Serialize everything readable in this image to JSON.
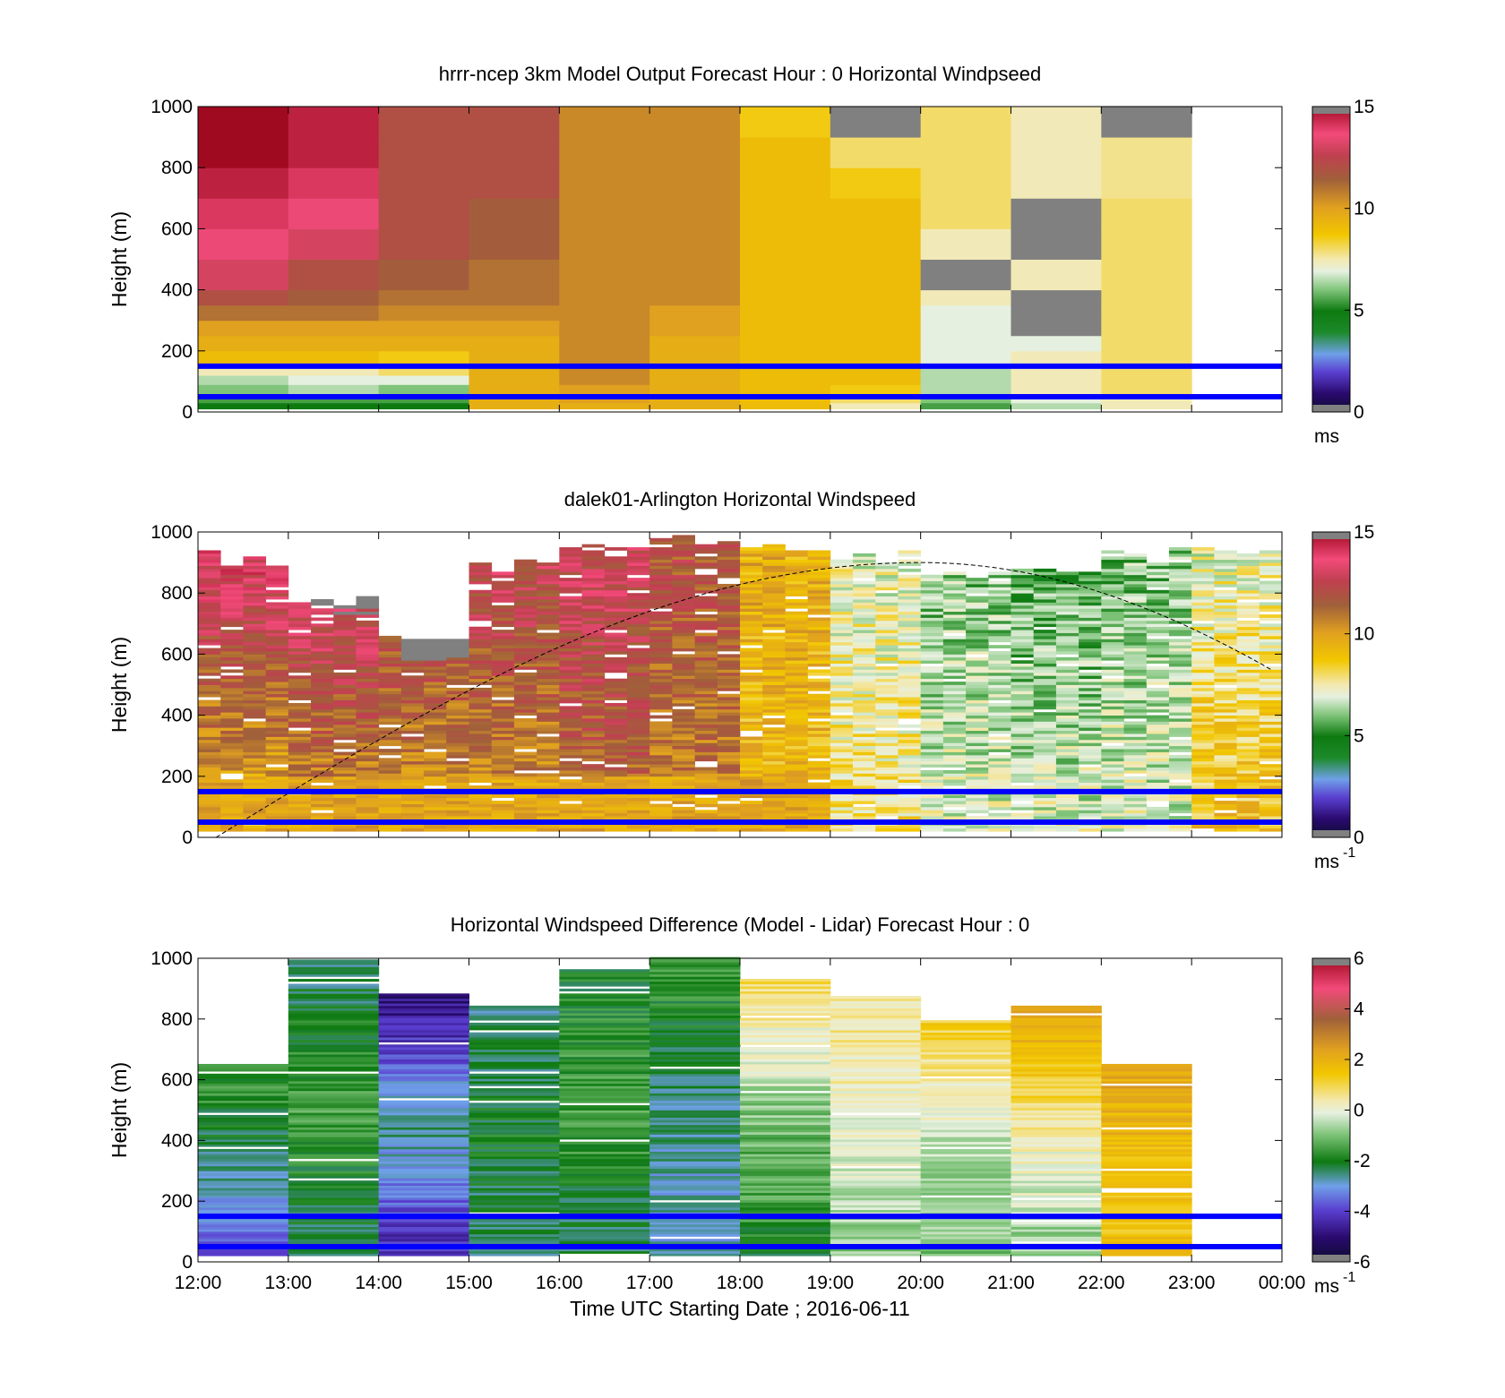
{
  "figure": {
    "xlabel": "Time UTC  Starting Date ; 2016-06-11",
    "x_ticks": [
      "12:00",
      "13:00",
      "14:00",
      "15:00",
      "16:00",
      "17:00",
      "18:00",
      "19:00",
      "20:00",
      "21:00",
      "22:00",
      "23:00",
      "00:00"
    ],
    "y_ticks": [
      "0",
      "200",
      "400",
      "600",
      "800",
      "1000"
    ],
    "ylabel": "Height (m)"
  },
  "colors": {
    "reference_lines": "#0000ff",
    "solar_curve": "#000000",
    "missing": "#808080"
  },
  "chart_data": [
    {
      "type": "heatmap",
      "panel": "model",
      "title": "hrrr-ncep 3km Model Output   Forecast Hour : 0 Horizontal Windpseed",
      "ylabel": "Height (m)",
      "xlim_hours_utc": [
        12,
        24
      ],
      "ylim": [
        0,
        1000
      ],
      "colorbar": {
        "ticks": [
          "0",
          "5",
          "10",
          "15"
        ],
        "range": [
          0,
          15
        ],
        "unit_label": "ms",
        "unit_superscript": ""
      },
      "reference_lines_m": [
        150,
        50
      ],
      "levels_m": [
        30,
        60,
        90,
        120,
        160,
        200,
        250,
        300,
        350,
        400,
        500,
        600,
        700,
        800,
        900,
        1000
      ],
      "columns": [
        {
          "hour": "12:00",
          "speed_ms": [
            5,
            5.5,
            6,
            6.5,
            7.5,
            9,
            9.5,
            10,
            11,
            12,
            13,
            13.5,
            14,
            14.5,
            15,
            15
          ]
        },
        {
          "hour": "13:00",
          "speed_ms": [
            5,
            5.5,
            6.5,
            7,
            7.5,
            9,
            9.5,
            10,
            11,
            11.5,
            12,
            13,
            13.5,
            14,
            14.5,
            14.5
          ]
        },
        {
          "hour": "14:00",
          "speed_ms": [
            5,
            5.5,
            6,
            7,
            8,
            8.5,
            9.5,
            10,
            10.5,
            11,
            11.5,
            12,
            12,
            12,
            12,
            12
          ]
        },
        {
          "hour": "15:00",
          "speed_ms": [
            9.5,
            9.5,
            9.5,
            9.5,
            9.5,
            9.5,
            9.5,
            10,
            10.5,
            11,
            11,
            11.5,
            11.5,
            12,
            12,
            12
          ]
        },
        {
          "hour": "16:00",
          "speed_ms": [
            9.5,
            10,
            10,
            10.5,
            10.5,
            10.5,
            10.5,
            10.5,
            10.5,
            10.5,
            10.5,
            10.5,
            10.5,
            10.5,
            10.5,
            10.5
          ]
        },
        {
          "hour": "17:00",
          "speed_ms": [
            9.5,
            9.5,
            9.5,
            9.5,
            9.5,
            9.5,
            9.5,
            10,
            10,
            10.5,
            10.5,
            10.5,
            10.5,
            10.5,
            10.5,
            10.5
          ]
        },
        {
          "hour": "18:00",
          "speed_ms": [
            9,
            9,
            9,
            9,
            9,
            9,
            9,
            9,
            9,
            9,
            9,
            9,
            9,
            9,
            9,
            8.5
          ]
        },
        {
          "hour": "19:00",
          "speed_ms": [
            7.5,
            8,
            8.5,
            9,
            9,
            9,
            9,
            9,
            9,
            9,
            9,
            9,
            9,
            8.5,
            8,
            null
          ]
        },
        {
          "hour": "20:00",
          "speed_ms": [
            5.5,
            6,
            6.5,
            6.5,
            6.5,
            7,
            7,
            7,
            7,
            7.5,
            null,
            7.5,
            8,
            8,
            8,
            8
          ]
        },
        {
          "hour": "21:00",
          "speed_ms": [
            6.5,
            7,
            7.5,
            7.5,
            7.5,
            7.5,
            7,
            null,
            null,
            null,
            7.5,
            null,
            null,
            7.5,
            7.5,
            7.5
          ]
        },
        {
          "hour": "22:00",
          "speed_ms": [
            7.5,
            7.5,
            8,
            8,
            8,
            8,
            8,
            8,
            8,
            8,
            8,
            8,
            8,
            7.8,
            7.8,
            null
          ]
        },
        {
          "hour": "23:00",
          "speed_ms": []
        }
      ]
    },
    {
      "type": "heatmap",
      "panel": "lidar",
      "title": "dalek01-Arlington  Horizontal Windspeed",
      "ylabel": "Height (m)",
      "xlim_hours_utc": [
        12,
        24
      ],
      "ylim": [
        0,
        1000
      ],
      "colorbar": {
        "ticks": [
          "0",
          "5",
          "10",
          "15"
        ],
        "range": [
          0,
          15
        ],
        "unit_label": "ms",
        "unit_superscript": "-1"
      },
      "reference_lines_m": [
        150,
        50
      ],
      "solar_curve_peak_m": 900,
      "solar_curve_peak_hour": 20,
      "hourly_profile": [
        {
          "hour": "12:00",
          "low_ms": 9,
          "high_ms": 14,
          "top_m": 940,
          "missing_above_m": null
        },
        {
          "hour": "13:00",
          "low_ms": 10,
          "high_ms": 14,
          "top_m": 790,
          "missing_above_m": 740
        },
        {
          "hour": "14:00",
          "low_ms": 10,
          "high_ms": 13,
          "top_m": 700,
          "missing_above_m": 580
        },
        {
          "hour": "15:00",
          "low_ms": 10,
          "high_ms": 13,
          "top_m": 920,
          "missing_above_m": null
        },
        {
          "hour": "16:00",
          "low_ms": 11,
          "high_ms": 13,
          "top_m": 1000,
          "missing_above_m": null
        },
        {
          "hour": "17:00",
          "low_ms": 10.5,
          "high_ms": 12,
          "top_m": 1000,
          "missing_above_m": null
        },
        {
          "hour": "18:00",
          "low_ms": 9,
          "high_ms": 9.5,
          "top_m": 980,
          "missing_above_m": null
        },
        {
          "hour": "19:00",
          "low_ms": 8,
          "high_ms": 7,
          "top_m": 950,
          "missing_above_m": null
        },
        {
          "hour": "20:00",
          "low_ms": 7,
          "high_ms": 6,
          "top_m": 900,
          "missing_above_m": null
        },
        {
          "hour": "21:00",
          "low_ms": 7,
          "high_ms": 5.5,
          "top_m": 900,
          "missing_above_m": null
        },
        {
          "hour": "22:00",
          "low_ms": 7,
          "high_ms": 6,
          "top_m": 950,
          "missing_above_m": null
        },
        {
          "hour": "23:00",
          "low_ms": 9,
          "high_ms": 7,
          "top_m": 950,
          "missing_above_m": null
        }
      ]
    },
    {
      "type": "heatmap",
      "panel": "difference",
      "title": "Horizontal Windspeed Difference (Model - Lidar) Forecast Hour : 0",
      "ylabel": "Height (m)",
      "xlabel": "Time UTC  Starting Date ; 2016-06-11",
      "xlim_hours_utc": [
        12,
        24
      ],
      "ylim": [
        0,
        1000
      ],
      "colorbar": {
        "ticks": [
          "-6",
          "-4",
          "-2",
          "0",
          "2",
          "4",
          "6"
        ],
        "range": [
          -6,
          6
        ],
        "unit_label": "ms",
        "unit_superscript": "-1"
      },
      "reference_lines_m": [
        150,
        50
      ],
      "columns": [
        {
          "hour": "12:00",
          "top_m": 650,
          "low_ms": -4,
          "mid_ms": -2.5,
          "high_ms": -1.5
        },
        {
          "hour": "13:00",
          "top_m": 1000,
          "low_ms": -2.5,
          "mid_ms": -1.5,
          "high_ms": -2.5
        },
        {
          "hour": "14:00",
          "top_m": 880,
          "low_ms": -4.5,
          "mid_ms": -2.5,
          "high_ms": -5
        },
        {
          "hour": "15:00",
          "top_m": 840,
          "low_ms": -2.5,
          "mid_ms": -2,
          "high_ms": -2.5
        },
        {
          "hour": "16:00",
          "top_m": 960,
          "low_ms": -2.5,
          "mid_ms": -1.5,
          "high_ms": -2
        },
        {
          "hour": "17:00",
          "top_m": 1000,
          "low_ms": -3,
          "mid_ms": -2.5,
          "high_ms": -1.5
        },
        {
          "hour": "18:00",
          "top_m": 930,
          "low_ms": -2,
          "mid_ms": -1,
          "high_ms": 0.8
        },
        {
          "hour": "19:00",
          "top_m": 870,
          "low_ms": -1,
          "mid_ms": 0,
          "high_ms": 0.5
        },
        {
          "hour": "20:00",
          "top_m": 790,
          "low_ms": -1,
          "mid_ms": -0.5,
          "high_ms": 1.2
        },
        {
          "hour": "21:00",
          "top_m": 840,
          "low_ms": -1,
          "mid_ms": 0.3,
          "high_ms": 2.5
        },
        {
          "hour": "22:00",
          "top_m": 650,
          "low_ms": 1.5,
          "mid_ms": 1.6,
          "high_ms": 2.3
        },
        {
          "hour": "23:00",
          "top_m": 0,
          "low_ms": null,
          "mid_ms": null,
          "high_ms": null
        }
      ]
    }
  ]
}
